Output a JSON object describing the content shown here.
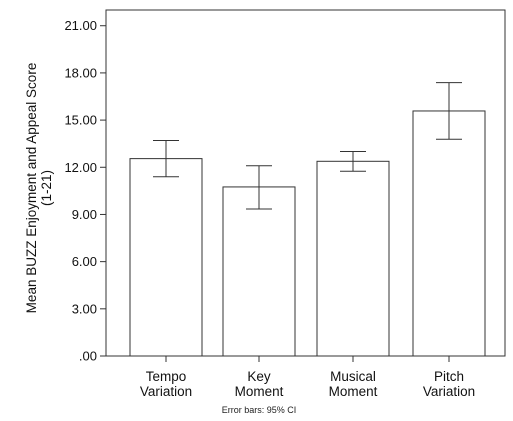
{
  "chart_data": {
    "type": "bar",
    "categories": [
      [
        "Tempo",
        "Variation"
      ],
      [
        "Key",
        "Moment"
      ],
      [
        "Musical",
        "Moment"
      ],
      [
        "Pitch",
        "Variation"
      ]
    ],
    "values": [
      12.55,
      10.75,
      12.38,
      15.58
    ],
    "error_bars": {
      "lower": [
        11.4,
        9.35,
        11.75,
        13.78
      ],
      "upper": [
        13.7,
        12.1,
        13.0,
        17.38
      ]
    },
    "ylabel_lines": [
      "Mean BUZZ Enjoyment and Appeal Score",
      "(1-21)"
    ],
    "ylim": [
      0,
      22
    ],
    "yticks": [
      0,
      3,
      6,
      9,
      12,
      15,
      18,
      21
    ],
    "ytick_labels": [
      ".00",
      "3.00",
      "6.00",
      "9.00",
      "12.00",
      "15.00",
      "18.00",
      "21.00"
    ],
    "note": "Error bars: 95% CI",
    "grid": false,
    "colors": {
      "bar_fill": "#ffffff",
      "bar_stroke": "#333333",
      "axis": "#333333"
    }
  }
}
